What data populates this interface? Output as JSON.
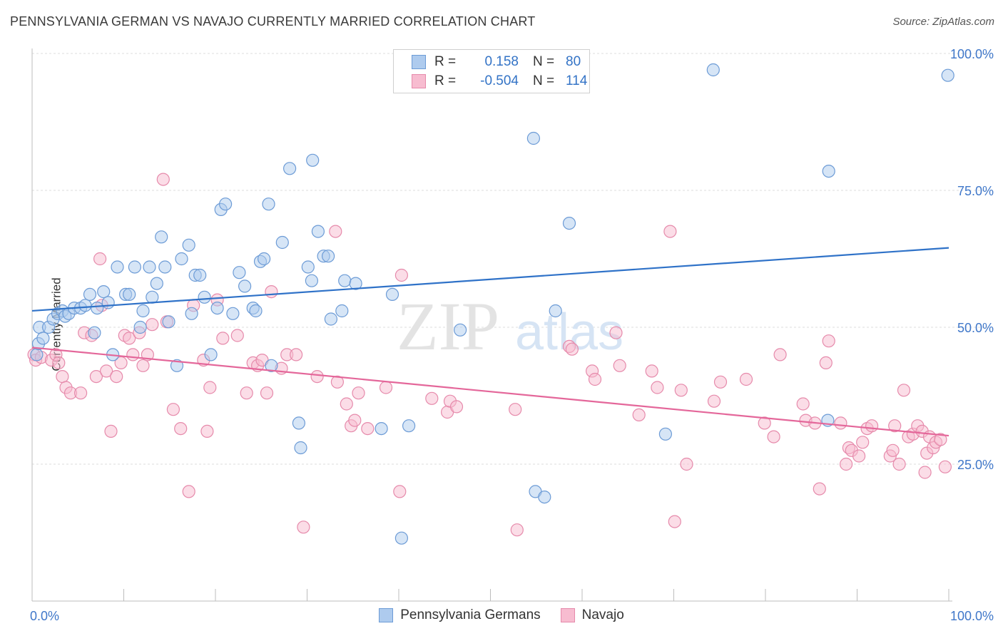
{
  "title": "PENNSYLVANIA GERMAN VS NAVAJO CURRENTLY MARRIED CORRELATION CHART",
  "source": "Source: ZipAtlas.com",
  "watermark": {
    "zip": "ZIP",
    "atlas": "atlas"
  },
  "colors": {
    "blue_fill": "#aecbee",
    "blue_stroke": "#6c9bd6",
    "blue_line": "#2f72c8",
    "pink_fill": "#f7bcd0",
    "pink_stroke": "#e68aab",
    "pink_line": "#e4679a",
    "grid": "#dedede",
    "tick_label": "#3f77c9"
  },
  "legend": {
    "rows": [
      {
        "r_label": "R =",
        "r_value": "0.158",
        "n_label": "N =",
        "n_value": "80"
      },
      {
        "r_label": "R =",
        "r_value": "-0.504",
        "n_label": "N =",
        "n_value": "114"
      }
    ]
  },
  "chart_data": {
    "type": "scatter",
    "title": "PENNSYLVANIA GERMAN VS NAVAJO CURRENTLY MARRIED CORRELATION CHART",
    "xlabel": "",
    "ylabel": "Currently Married",
    "xlim": [
      0,
      100
    ],
    "ylim": [
      0,
      100
    ],
    "x_tick_labels": [
      "0.0%",
      "100.0%"
    ],
    "y_tick_labels": [
      "25.0%",
      "50.0%",
      "75.0%",
      "100.0%"
    ],
    "y_ticks": [
      25,
      50,
      75,
      100
    ],
    "grid": true,
    "legend_position": "top-center",
    "series": [
      {
        "name": "Pennsylvania Germans",
        "trend": {
          "x": [
            0,
            100
          ],
          "y": [
            53,
            64.5
          ]
        },
        "points": [
          [
            0.5,
            45
          ],
          [
            0.7,
            47
          ],
          [
            0.8,
            50
          ],
          [
            1.2,
            48
          ],
          [
            1.8,
            50
          ],
          [
            2.3,
            51.5
          ],
          [
            2.8,
            52.5
          ],
          [
            3.3,
            53
          ],
          [
            3.6,
            52
          ],
          [
            4,
            52.5
          ],
          [
            4.6,
            53.5
          ],
          [
            5.3,
            53.5
          ],
          [
            5.8,
            54
          ],
          [
            6.3,
            56
          ],
          [
            6.8,
            49
          ],
          [
            7.1,
            53.5
          ],
          [
            7.8,
            56.5
          ],
          [
            8.3,
            54.5
          ],
          [
            8.8,
            45
          ],
          [
            9.3,
            61
          ],
          [
            10.2,
            56
          ],
          [
            10.6,
            56
          ],
          [
            11.2,
            61
          ],
          [
            11.8,
            50
          ],
          [
            12.1,
            53
          ],
          [
            12.8,
            61
          ],
          [
            13.1,
            55.5
          ],
          [
            13.6,
            58
          ],
          [
            14.1,
            66.5
          ],
          [
            14.5,
            61
          ],
          [
            14.9,
            51
          ],
          [
            15.8,
            43
          ],
          [
            16.3,
            62.5
          ],
          [
            17.1,
            65
          ],
          [
            17.4,
            52.5
          ],
          [
            17.8,
            59.5
          ],
          [
            18.3,
            59.5
          ],
          [
            18.8,
            55.5
          ],
          [
            19.5,
            45
          ],
          [
            20.2,
            53.5
          ],
          [
            20.6,
            71.5
          ],
          [
            21.1,
            72.5
          ],
          [
            21.9,
            52.5
          ],
          [
            22.6,
            60
          ],
          [
            23.2,
            57.5
          ],
          [
            24.1,
            53.5
          ],
          [
            24.4,
            53
          ],
          [
            24.9,
            62
          ],
          [
            25.3,
            62.5
          ],
          [
            25.8,
            72.5
          ],
          [
            26.1,
            43
          ],
          [
            27.3,
            65.5
          ],
          [
            28.1,
            79
          ],
          [
            29.1,
            32.5
          ],
          [
            29.3,
            28
          ],
          [
            30.1,
            61
          ],
          [
            30.5,
            58.5
          ],
          [
            30.6,
            80.5
          ],
          [
            31.2,
            67.5
          ],
          [
            31.8,
            63
          ],
          [
            32.3,
            63
          ],
          [
            32.6,
            51.5
          ],
          [
            33.8,
            53
          ],
          [
            34.1,
            58.5
          ],
          [
            35.3,
            58
          ],
          [
            38.1,
            31.5
          ],
          [
            39.3,
            56
          ],
          [
            40.3,
            11.5
          ],
          [
            41.1,
            32
          ],
          [
            46.7,
            49.5
          ],
          [
            54.7,
            84.5
          ],
          [
            54.9,
            20
          ],
          [
            55.9,
            19
          ],
          [
            57.1,
            53
          ],
          [
            58.6,
            69
          ],
          [
            69.1,
            30.5
          ],
          [
            74.3,
            97
          ],
          [
            86.8,
            33
          ],
          [
            86.9,
            78.5
          ],
          [
            99.9,
            96
          ]
        ]
      },
      {
        "name": "Navajo",
        "trend": {
          "x": [
            0,
            100
          ],
          "y": [
            46.3,
            30.2
          ]
        },
        "points": [
          [
            0.2,
            45
          ],
          [
            0.4,
            44
          ],
          [
            1,
            44.5
          ],
          [
            2.1,
            44
          ],
          [
            2.6,
            45
          ],
          [
            2.9,
            43.5
          ],
          [
            3.3,
            41
          ],
          [
            3.7,
            39
          ],
          [
            4.2,
            38
          ],
          [
            5.3,
            38
          ],
          [
            5.7,
            49
          ],
          [
            6.5,
            48.5
          ],
          [
            7,
            41
          ],
          [
            7.6,
            54
          ],
          [
            7.4,
            62.5
          ],
          [
            8.1,
            42
          ],
          [
            8.6,
            31
          ],
          [
            9.2,
            41
          ],
          [
            9.7,
            43.5
          ],
          [
            10.1,
            48.5
          ],
          [
            10.6,
            48
          ],
          [
            11,
            45
          ],
          [
            11.7,
            49
          ],
          [
            12.1,
            43
          ],
          [
            12.6,
            45
          ],
          [
            13.1,
            50.5
          ],
          [
            14.3,
            77
          ],
          [
            14.7,
            51
          ],
          [
            15.4,
            35
          ],
          [
            16.2,
            31.5
          ],
          [
            17.1,
            20
          ],
          [
            17.6,
            54
          ],
          [
            18.7,
            44
          ],
          [
            19.1,
            31
          ],
          [
            19.4,
            39
          ],
          [
            20.2,
            55
          ],
          [
            20.8,
            48
          ],
          [
            22.4,
            48.5
          ],
          [
            23.4,
            38
          ],
          [
            24.1,
            43.5
          ],
          [
            24.6,
            43
          ],
          [
            25.1,
            44
          ],
          [
            25.6,
            38
          ],
          [
            26.1,
            56.5
          ],
          [
            27.2,
            42.5
          ],
          [
            27.8,
            45
          ],
          [
            28.8,
            45
          ],
          [
            29.6,
            13.5
          ],
          [
            31.1,
            41
          ],
          [
            33.1,
            67.5
          ],
          [
            33.3,
            40
          ],
          [
            34.3,
            36
          ],
          [
            34.8,
            32
          ],
          [
            35.2,
            33
          ],
          [
            35.6,
            38
          ],
          [
            36.6,
            31.5
          ],
          [
            38.6,
            39
          ],
          [
            40.1,
            20
          ],
          [
            40.3,
            59.5
          ],
          [
            43.6,
            37
          ],
          [
            45.3,
            34.5
          ],
          [
            45.6,
            36.5
          ],
          [
            46.3,
            35.5
          ],
          [
            52.7,
            35
          ],
          [
            52.9,
            13
          ],
          [
            58.6,
            46.5
          ],
          [
            58.9,
            46
          ],
          [
            61.1,
            42
          ],
          [
            61.4,
            40.5
          ],
          [
            63.7,
            49
          ],
          [
            64.1,
            43
          ],
          [
            66.2,
            34
          ],
          [
            67.6,
            42
          ],
          [
            68.2,
            39
          ],
          [
            69.6,
            67.5
          ],
          [
            70.1,
            14.5
          ],
          [
            70.8,
            38.5
          ],
          [
            71.4,
            25
          ],
          [
            74.4,
            36.5
          ],
          [
            75.1,
            40
          ],
          [
            77.9,
            40.5
          ],
          [
            79.9,
            32.5
          ],
          [
            80.9,
            30
          ],
          [
            81.6,
            45
          ],
          [
            84.1,
            36
          ],
          [
            84.4,
            33
          ],
          [
            85.4,
            32.5
          ],
          [
            85.9,
            20.5
          ],
          [
            86.6,
            43.5
          ],
          [
            86.9,
            47.5
          ],
          [
            88.2,
            32.5
          ],
          [
            88.8,
            25
          ],
          [
            89.1,
            28
          ],
          [
            89.4,
            27.5
          ],
          [
            90.2,
            26.5
          ],
          [
            90.6,
            29
          ],
          [
            91.1,
            31.5
          ],
          [
            91.6,
            32
          ],
          [
            93.6,
            26.5
          ],
          [
            93.9,
            27.5
          ],
          [
            94.1,
            32
          ],
          [
            94.6,
            25
          ],
          [
            95.1,
            38.5
          ],
          [
            95.6,
            30
          ],
          [
            96.1,
            30.5
          ],
          [
            96.6,
            32
          ],
          [
            97.1,
            31
          ],
          [
            97.4,
            23.5
          ],
          [
            97.6,
            27
          ],
          [
            97.9,
            30
          ],
          [
            98.3,
            28
          ],
          [
            98.6,
            29
          ],
          [
            99.1,
            29.5
          ],
          [
            99.6,
            24.5
          ]
        ]
      }
    ]
  },
  "bottom_legend": [
    "Pennsylvania Germans",
    "Navajo"
  ]
}
